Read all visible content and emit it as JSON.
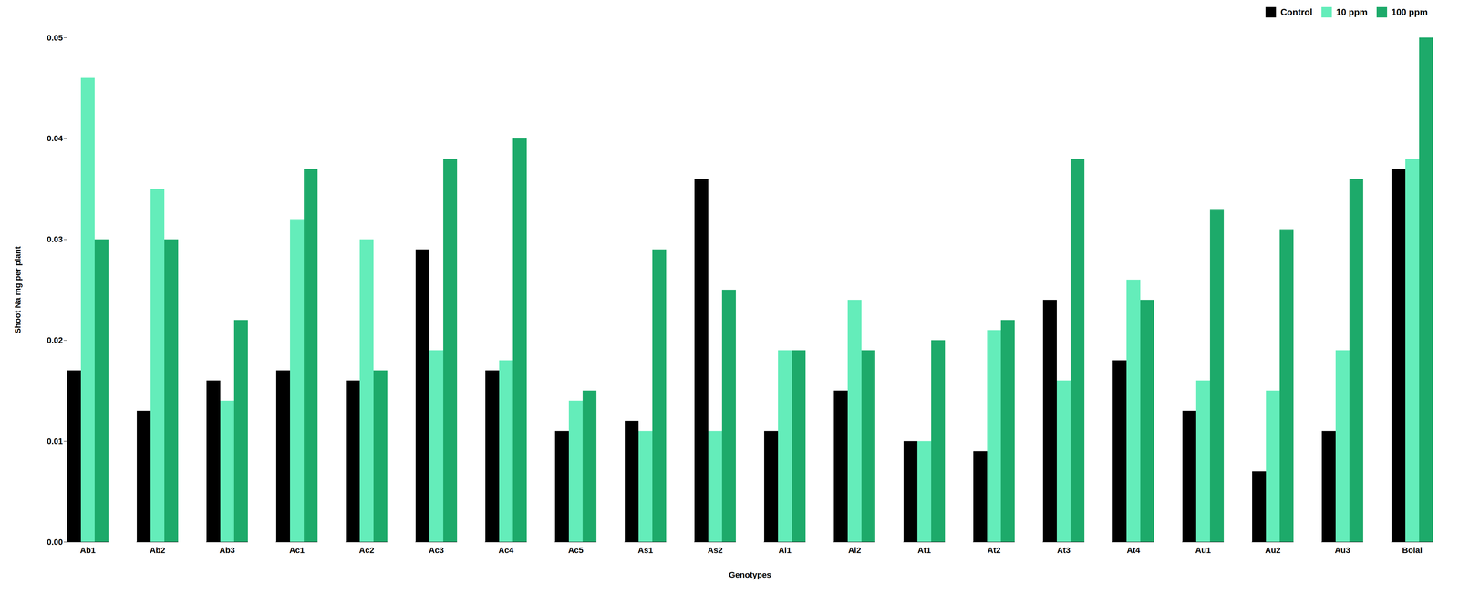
{
  "chart_data": {
    "type": "bar",
    "xlabel": "Genotypes",
    "ylabel": "Shoot Na mg per plant",
    "categories": [
      "Ab1",
      "Ab2",
      "Ab3",
      "Ac1",
      "Ac2",
      "Ac3",
      "Ac4",
      "Ac5",
      "As1",
      "As2",
      "Al1",
      "Al2",
      "At1",
      "At2",
      "At3",
      "At4",
      "Au1",
      "Au2",
      "Au3",
      "Bolal"
    ],
    "series": [
      {
        "name": "Control",
        "color": "#000000",
        "values": [
          0.017,
          0.013,
          0.016,
          0.017,
          0.016,
          0.029,
          0.017,
          0.011,
          0.012,
          0.036,
          0.011,
          0.015,
          0.01,
          0.009,
          0.024,
          0.018,
          0.013,
          0.007,
          0.011,
          0.037
        ]
      },
      {
        "name": "10 ppm",
        "color": "#64EDBA",
        "values": [
          0.046,
          0.035,
          0.014,
          0.032,
          0.03,
          0.019,
          0.018,
          0.014,
          0.011,
          0.011,
          0.019,
          0.024,
          0.01,
          0.021,
          0.016,
          0.026,
          0.016,
          0.015,
          0.019,
          0.038
        ]
      },
      {
        "name": "100 ppm",
        "color": "#1DAA6A",
        "values": [
          0.03,
          0.03,
          0.022,
          0.037,
          0.017,
          0.038,
          0.04,
          0.015,
          0.029,
          0.025,
          0.019,
          0.019,
          0.02,
          0.022,
          0.038,
          0.024,
          0.033,
          0.031,
          0.036,
          0.05
        ]
      }
    ],
    "ylim": [
      0,
      0.05
    ],
    "yticks": [
      {
        "value": 0,
        "label": "0.00"
      },
      0.01,
      0.02,
      0.03,
      0.04,
      0.05
    ],
    "legend": "upper right",
    "grid": false
  }
}
